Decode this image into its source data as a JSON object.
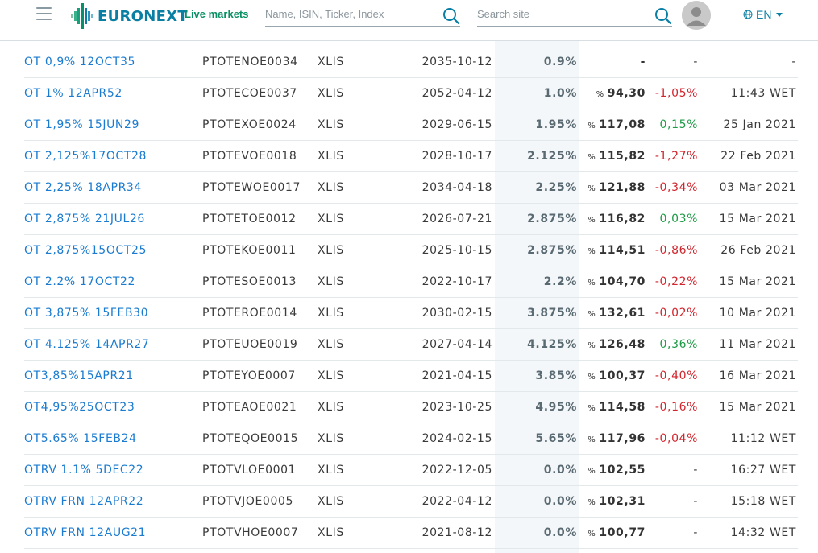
{
  "header": {
    "logo_text": "EURONEXT",
    "live_markets": "Live markets",
    "instrument_search_placeholder": "Name, ISIN, Ticker, Index",
    "site_search_placeholder": "Search site",
    "language": "EN",
    "brand_color": "#0a7fa3"
  },
  "rows": [
    {
      "name": "OT 0,9% 12OCT35",
      "isin": "PTOTENOE0034",
      "market": "XLIS",
      "maturity": "2035-10-12",
      "coupon": "0.9%",
      "price_prefix": "",
      "price": "-",
      "change": "-",
      "change_sign": "neu",
      "time": "-"
    },
    {
      "name": "OT 1% 12APR52",
      "isin": "PTOTECOE0037",
      "market": "XLIS",
      "maturity": "2052-04-12",
      "coupon": "1.0%",
      "price_prefix": "%",
      "price": "94,30",
      "change": "-1,05%",
      "change_sign": "neg",
      "time": "11:43 WET"
    },
    {
      "name": "OT 1,95% 15JUN29",
      "isin": "PTOTEXOE0024",
      "market": "XLIS",
      "maturity": "2029-06-15",
      "coupon": "1.95%",
      "price_prefix": "%",
      "price": "117,08",
      "change": "0,15%",
      "change_sign": "pos",
      "time": "25 Jan 2021"
    },
    {
      "name": "OT 2,125%17OCT28",
      "isin": "PTOTEVOE0018",
      "market": "XLIS",
      "maturity": "2028-10-17",
      "coupon": "2.125%",
      "price_prefix": "%",
      "price": "115,82",
      "change": "-1,27%",
      "change_sign": "neg",
      "time": "22 Feb 2021"
    },
    {
      "name": "OT 2,25% 18APR34",
      "isin": "PTOTEWOE0017",
      "market": "XLIS",
      "maturity": "2034-04-18",
      "coupon": "2.25%",
      "price_prefix": "%",
      "price": "121,88",
      "change": "-0,34%",
      "change_sign": "neg",
      "time": "03 Mar 2021"
    },
    {
      "name": "OT 2,875% 21JUL26",
      "isin": "PTOTETOE0012",
      "market": "XLIS",
      "maturity": "2026-07-21",
      "coupon": "2.875%",
      "price_prefix": "%",
      "price": "116,82",
      "change": "0,03%",
      "change_sign": "pos",
      "time": "15 Mar 2021"
    },
    {
      "name": "OT 2,875%15OCT25",
      "isin": "PTOTEKOE0011",
      "market": "XLIS",
      "maturity": "2025-10-15",
      "coupon": "2.875%",
      "price_prefix": "%",
      "price": "114,51",
      "change": "-0,86%",
      "change_sign": "neg",
      "time": "26 Feb 2021"
    },
    {
      "name": "OT 2.2% 17OCT22",
      "isin": "PTOTESOE0013",
      "market": "XLIS",
      "maturity": "2022-10-17",
      "coupon": "2.2%",
      "price_prefix": "%",
      "price": "104,70",
      "change": "-0,22%",
      "change_sign": "neg",
      "time": "15 Mar 2021"
    },
    {
      "name": "OT 3,875% 15FEB30",
      "isin": "PTOTEROE0014",
      "market": "XLIS",
      "maturity": "2030-02-15",
      "coupon": "3.875%",
      "price_prefix": "%",
      "price": "132,61",
      "change": "-0,02%",
      "change_sign": "neg",
      "time": "10 Mar 2021"
    },
    {
      "name": "OT 4.125% 14APR27",
      "isin": "PTOTEUOE0019",
      "market": "XLIS",
      "maturity": "2027-04-14",
      "coupon": "4.125%",
      "price_prefix": "%",
      "price": "126,48",
      "change": "0,36%",
      "change_sign": "pos",
      "time": "11 Mar 2021"
    },
    {
      "name": "OT3,85%15APR21",
      "isin": "PTOTEYOE0007",
      "market": "XLIS",
      "maturity": "2021-04-15",
      "coupon": "3.85%",
      "price_prefix": "%",
      "price": "100,37",
      "change": "-0,40%",
      "change_sign": "neg",
      "time": "16 Mar 2021"
    },
    {
      "name": "OT4,95%25OCT23",
      "isin": "PTOTEAOE0021",
      "market": "XLIS",
      "maturity": "2023-10-25",
      "coupon": "4.95%",
      "price_prefix": "%",
      "price": "114,58",
      "change": "-0,16%",
      "change_sign": "neg",
      "time": "15 Mar 2021"
    },
    {
      "name": "OT5.65% 15FEB24",
      "isin": "PTOTEQOE0015",
      "market": "XLIS",
      "maturity": "2024-02-15",
      "coupon": "5.65%",
      "price_prefix": "%",
      "price": "117,96",
      "change": "-0,04%",
      "change_sign": "neg",
      "time": "11:12 WET"
    },
    {
      "name": "OTRV 1.1% 5DEC22",
      "isin": "PTOTVLOE0001",
      "market": "XLIS",
      "maturity": "2022-12-05",
      "coupon": "0.0%",
      "price_prefix": "%",
      "price": "102,55",
      "change": "-",
      "change_sign": "neu",
      "time": "16:27 WET"
    },
    {
      "name": "OTRV FRN 12APR22",
      "isin": "PTOTVJOE0005",
      "market": "XLIS",
      "maturity": "2022-04-12",
      "coupon": "0.0%",
      "price_prefix": "%",
      "price": "102,31",
      "change": "-",
      "change_sign": "neu",
      "time": "15:18 WET"
    },
    {
      "name": "OTRV FRN 12AUG21",
      "isin": "PTOTVHOE0007",
      "market": "XLIS",
      "maturity": "2021-08-12",
      "coupon": "0.0%",
      "price_prefix": "%",
      "price": "100,77",
      "change": "-",
      "change_sign": "neu",
      "time": "14:32 WET"
    }
  ]
}
